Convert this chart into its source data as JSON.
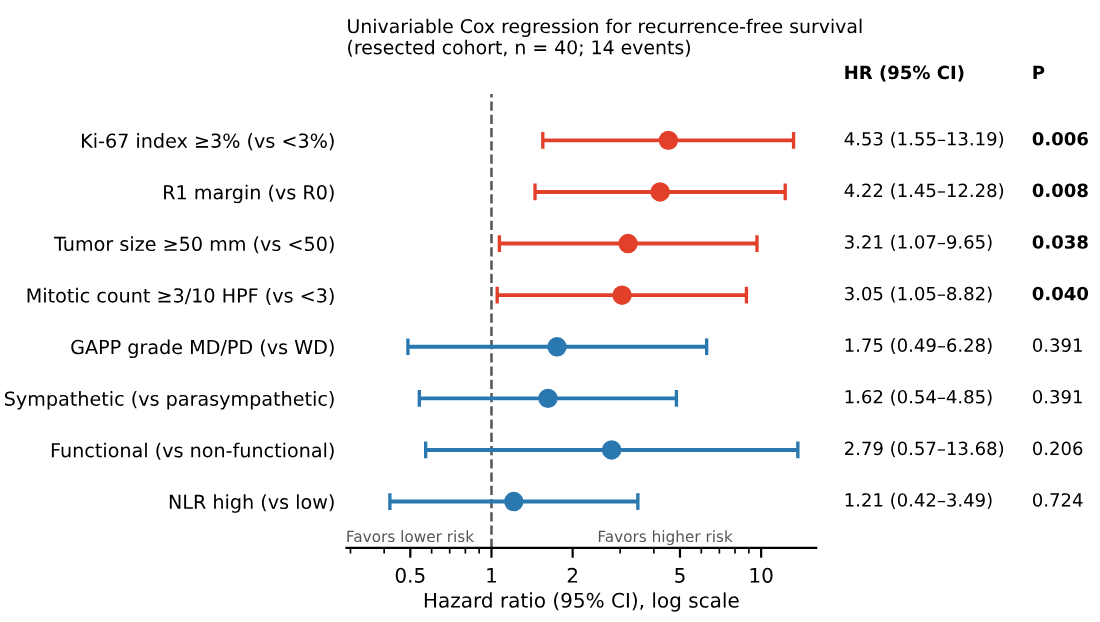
{
  "chart_data": {
    "type": "scatter",
    "title": "Univariable Cox regression for recurrence-free survival\n(resected cohort, n = 40; 14 events)",
    "xlabel": "Hazard ratio (95% CI), log scale",
    "categories": [
      "Ki-67 index ≥3% (vs <3%)",
      "R1 margin (vs R0)",
      "Tumor size ≥50 mm (vs <50)",
      "Mitotic count ≥3/10 HPF (vs <3)",
      "GAPP grade MD/PD (vs WD)",
      "Sympathetic (vs parasympathetic)",
      "Functional (vs non-functional)",
      "NLR high (vs low)"
    ],
    "orientation": "horizontal",
    "series": [
      {
        "color": "#e2402b",
        "values": [
          4.53,
          4.22,
          3.21,
          3.05,
          null,
          null,
          null,
          null
        ],
        "errors": [
          [
            1.55,
            13.19
          ],
          [
            1.45,
            12.28
          ],
          [
            1.07,
            9.65
          ],
          [
            1.05,
            8.82
          ],
          null,
          null,
          null,
          null
        ]
      },
      {
        "color": "#2a78b0",
        "values": [
          null,
          null,
          null,
          null,
          1.75,
          1.62,
          2.79,
          1.21
        ],
        "errors": [
          null,
          null,
          null,
          null,
          [
            0.49,
            6.28
          ],
          [
            0.54,
            4.85
          ],
          [
            0.57,
            13.68
          ],
          [
            0.42,
            3.49
          ]
        ]
      }
    ],
    "log": "x",
    "xlim": [
      0.29,
      16
    ],
    "xticks": [
      0.5,
      1,
      2,
      5,
      10
    ],
    "marker": "circle",
    "grid": false,
    "legend": false,
    "ref_lines": [
      {
        "axis": "x",
        "value": 1,
        "line_style": "dashed",
        "color": "#555555"
      }
    ],
    "annotations": [
      "Favors lower risk",
      "Favors higher risk",
      "HR (95% CI)",
      "P",
      "4.53 (1.55–13.19)",
      "4.22 (1.45–12.28)",
      "3.21 (1.07–9.65)",
      "3.05 (1.05–8.82)",
      "1.75 (0.49–6.28)",
      "1.62 (0.54–4.85)",
      "2.79 (0.57–13.68)",
      "1.21 (0.42–3.49)",
      "0.006",
      "0.008",
      "0.038",
      "0.040",
      "0.391",
      "0.391",
      "0.206",
      "0.724"
    ]
  }
}
